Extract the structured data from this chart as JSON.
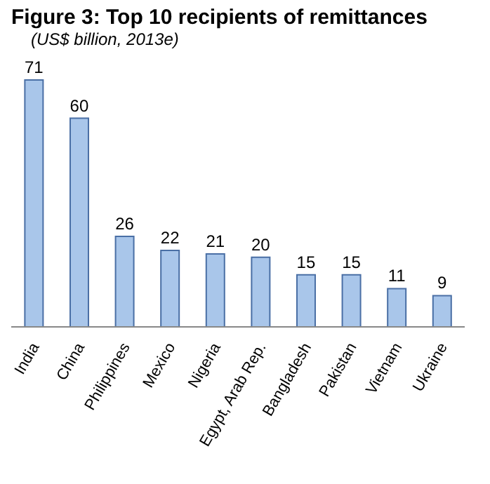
{
  "chart_data": {
    "type": "bar",
    "title": "Figure 3: Top 10 recipients of remittances",
    "subtitle": "(US$ billion, 2013e)",
    "categories": [
      "India",
      "China",
      "Philippines",
      "Mexico",
      "Nigeria",
      "Egypt, Arab Rep.",
      "Bangladesh",
      "Pakistan",
      "Vietnam",
      "Ukraine"
    ],
    "values": [
      71,
      60,
      26,
      22,
      21,
      20,
      15,
      15,
      11,
      9
    ],
    "color": "#a9c6ea",
    "data_labels": true,
    "grid": false,
    "legend": false
  }
}
